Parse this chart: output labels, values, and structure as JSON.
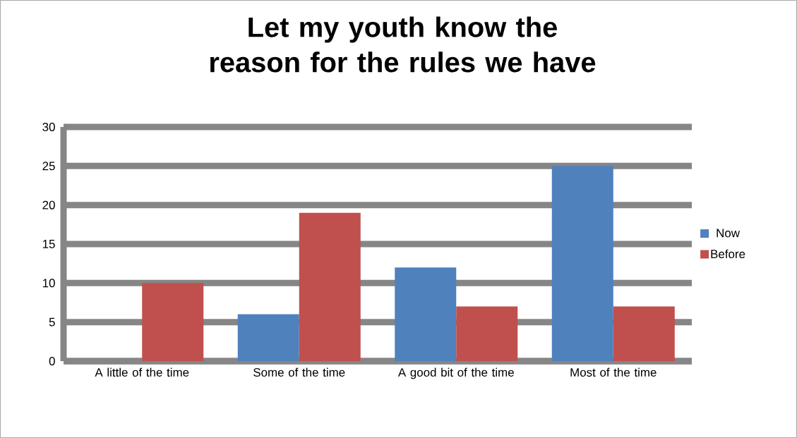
{
  "chart_data": {
    "type": "bar",
    "title": "Let my youth know the reason for the rules we have",
    "categories": [
      "A little of the time",
      "Some of the time",
      "A good bit of the time",
      "Most of the time"
    ],
    "series": [
      {
        "name": "Now",
        "color": "#4f81bd",
        "values": [
          0,
          6,
          12,
          25
        ]
      },
      {
        "name": "Before",
        "color": "#c0504d",
        "values": [
          10,
          19,
          7,
          7
        ]
      }
    ],
    "ylim": [
      0,
      30
    ],
    "yticks": [
      0,
      5,
      10,
      15,
      20,
      25,
      30
    ],
    "grid": "y",
    "legend": "right"
  }
}
